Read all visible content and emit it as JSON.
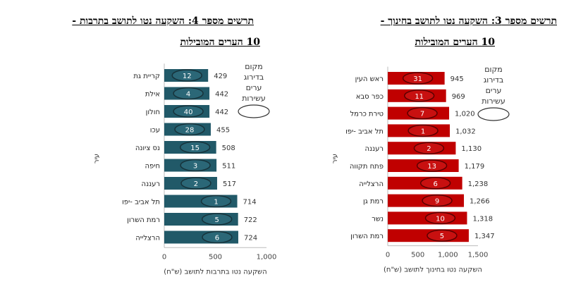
{
  "chart_data": [
    {
      "type": "bar",
      "orientation": "horizontal",
      "title_line1": "תרשים מספר 4: השקעה נטו לתושב בתרבות -",
      "title_line2": "10 הערים המובילות",
      "categories": [
        "קריית גת",
        "אילת",
        "חולון",
        "עכו",
        "נס ציונה",
        "חיפה",
        "רעננה",
        "תל אביב -יפו",
        "רמת השרון",
        "הרצלייה"
      ],
      "values": [
        429,
        442,
        442,
        455,
        508,
        511,
        517,
        714,
        722,
        724
      ],
      "value_labels": [
        "429",
        "442",
        "442",
        "455",
        "508",
        "511",
        "517",
        "714",
        "722",
        "724"
      ],
      "ranks": [
        "12",
        "4",
        "40",
        "28",
        "15",
        "3",
        "2",
        "1",
        "5",
        "6"
      ],
      "xlabel": "השקעה נטו בתרבות לתושב (ש\"ח)",
      "ylabel": "עיר",
      "xlim": [
        0,
        1000
      ],
      "xticks": [
        "0",
        "500",
        "1,000"
      ],
      "legend": [
        "מקום",
        "בדירוג",
        "ערים",
        "עשירות"
      ],
      "color": "#215968"
    },
    {
      "type": "bar",
      "orientation": "horizontal",
      "title_line1": "תרשים מספר 3: השקעה נטו לתושב בחינוך -",
      "title_line2": "10 הערים המובילות",
      "categories": [
        "ראש העין",
        "כפר סבא",
        "טירת כרמל",
        "תל אביב -יפו",
        "רעננה",
        "פתח תקווה",
        "הרצלייה",
        "רמת גן",
        "נשר",
        "רמת השרון"
      ],
      "values": [
        945,
        969,
        1020,
        1032,
        1130,
        1179,
        1238,
        1266,
        1318,
        1347
      ],
      "value_labels": [
        "945",
        "969",
        "1,020",
        "1,032",
        "1,130",
        "1,179",
        "1,238",
        "1,266",
        "1,318",
        "1,347"
      ],
      "ranks": [
        "31",
        "11",
        "7",
        "1",
        "2",
        "13",
        "6",
        "9",
        "10",
        "5"
      ],
      "xlabel": "השקעה נטו בחינוך לתושב (ש\"ח)",
      "ylabel": "עיר",
      "xlim": [
        0,
        1500
      ],
      "xticks": [
        "0",
        "500",
        "1,000",
        "1,500"
      ],
      "legend": [
        "מקום",
        "בדירוג",
        "ערים",
        "עשירות"
      ],
      "color": "#C00000"
    }
  ]
}
